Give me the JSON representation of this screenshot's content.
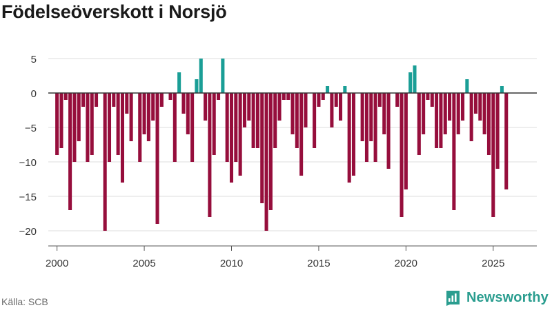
{
  "title": "Födelseöverskott i Norsjö",
  "source": "Källa: SCB",
  "brand": {
    "name": "Newsworthy",
    "logo_icon": "newsworthy-logo-icon",
    "color": "#2a9d8f"
  },
  "chart_data": {
    "type": "bar",
    "title": "Födelseöverskott i Norsjö",
    "xlabel": "",
    "ylabel": "",
    "x_ticks": [
      2000,
      2005,
      2010,
      2015,
      2020,
      2025
    ],
    "y_ticks": [
      5,
      0,
      -5,
      -10,
      -15,
      -20
    ],
    "y_tick_labels": [
      "5",
      "0",
      "−5",
      "−10",
      "−15",
      "−20"
    ],
    "xlim": [
      1999.5,
      2027.5
    ],
    "ylim": [
      -22,
      7.5
    ],
    "bar_width_years": 0.2,
    "colors": {
      "positive": "#1a9e96",
      "negative": "#960e3c"
    },
    "frequency": "quarterly",
    "series": [
      {
        "name": "Födelseöverskott",
        "start": 2000.0,
        "step": 0.25,
        "values": [
          -9,
          -8,
          -1,
          -17,
          -10,
          -7,
          -2,
          -10,
          -9,
          -2,
          0,
          -20,
          -10,
          -2,
          -9,
          -13,
          -3,
          -7,
          0,
          -10,
          -6,
          -7,
          -4,
          -19,
          -2,
          0,
          -1,
          -10,
          3,
          -3,
          -6,
          -10,
          2,
          5,
          -4,
          -18,
          -9,
          -1,
          5,
          -10,
          -13,
          -10,
          -12,
          -5,
          -4,
          -8,
          -8,
          -16,
          -20,
          -17,
          -8,
          -4,
          -1,
          -1,
          -6,
          -8,
          -12,
          -5,
          0,
          -8,
          -2,
          -1,
          1,
          -5,
          -2,
          -4,
          1,
          -13,
          -12,
          0,
          -7,
          -10,
          -7,
          -10,
          -2,
          -6,
          -11,
          0,
          -2,
          -18,
          -14,
          3,
          4,
          -9,
          -6,
          -1,
          -2,
          -8,
          -8,
          -6,
          -4,
          -17,
          -6,
          -4,
          2,
          -7,
          -3,
          -4,
          -6,
          -9,
          -18,
          -11,
          1,
          -14
        ]
      }
    ]
  }
}
